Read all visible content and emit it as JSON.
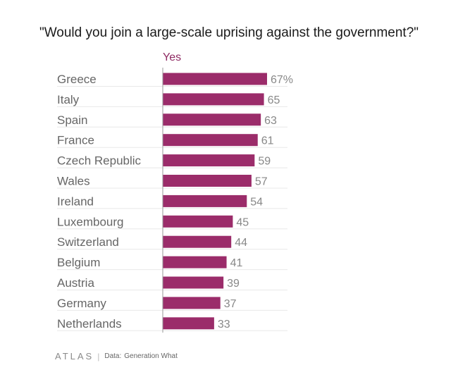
{
  "chart_data": {
    "type": "bar",
    "orientation": "horizontal",
    "title": "\"Would you join a large-scale uprising against the government?\"",
    "series": [
      {
        "name": "Yes",
        "values": [
          67,
          65,
          63,
          61,
          59,
          57,
          54,
          45,
          44,
          41,
          39,
          37,
          33
        ]
      }
    ],
    "categories": [
      "Greece",
      "Italy",
      "Spain",
      "France",
      "Czech Republic",
      "Wales",
      "Ireland",
      "Luxembourg",
      "Switzerland",
      "Belgium",
      "Austria",
      "Germany",
      "Netherlands"
    ],
    "value_labels": [
      "67%",
      "65",
      "63",
      "61",
      "59",
      "57",
      "54",
      "45",
      "44",
      "41",
      "39",
      "37",
      "33"
    ],
    "xlim": [
      0,
      67
    ],
    "grid": true,
    "colors": {
      "bar": "#9b2c6a",
      "series_label": "#8f2b63",
      "value_label": "#888888",
      "category_label": "#666666",
      "grid": "#e8e8e8"
    }
  },
  "footer": {
    "logo": "ATLAS",
    "separator": "|",
    "source_prefix": "Data:",
    "source": "Generation What"
  }
}
